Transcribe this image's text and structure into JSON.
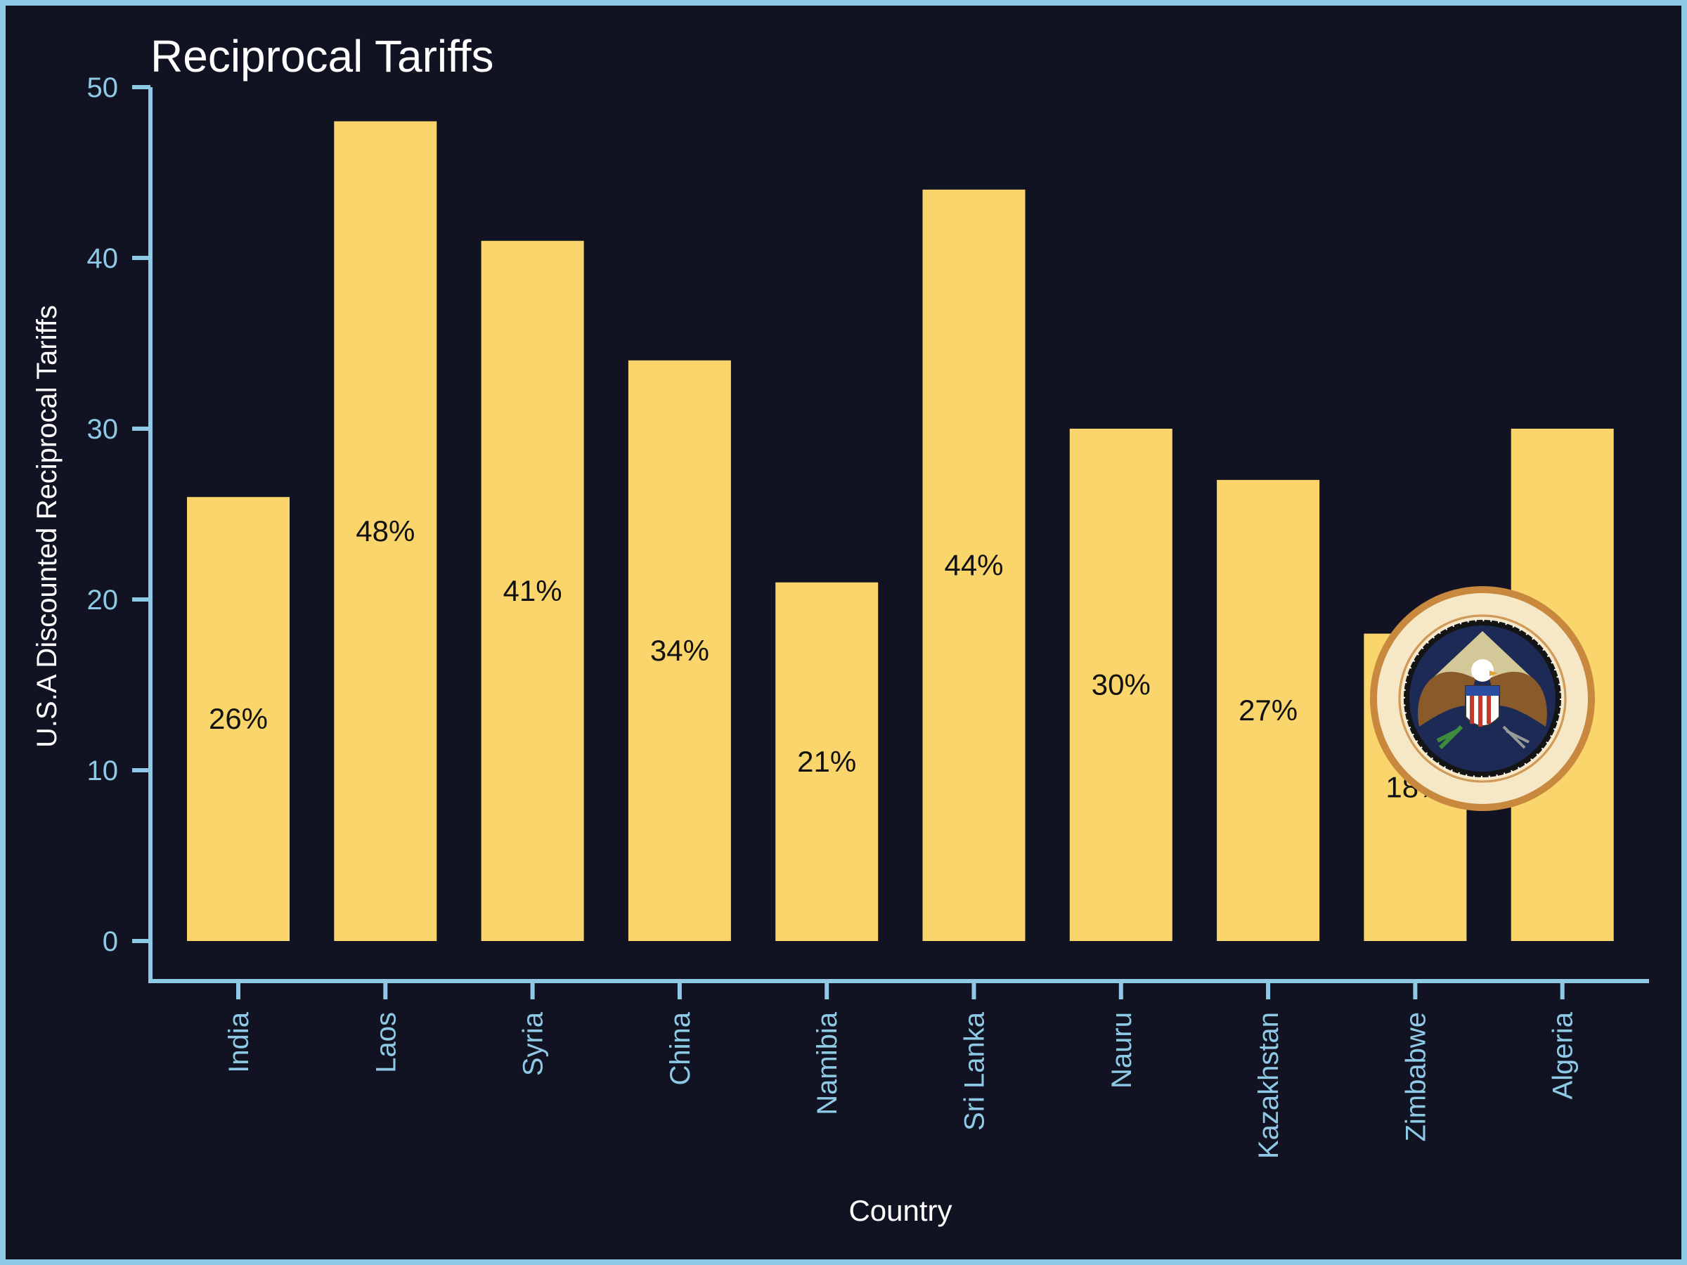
{
  "colors": {
    "background": "#111322",
    "frame": "#8ecae6",
    "axis": "#8ecae6",
    "tick_label": "#8ecae6",
    "text": "#ffffff",
    "bar": "#f9d56b",
    "bar_label": "#111111"
  },
  "chart_data": {
    "type": "bar",
    "title": "Reciprocal Tariffs",
    "xlabel": "Country",
    "ylabel": "U.S.A Discounted Reciprocal Tariffs",
    "categories": [
      "India",
      "Laos",
      "Syria",
      "China",
      "Namibia",
      "Sri Lanka",
      "Nauru",
      "Kazakhstan",
      "Zimbabwe",
      "Algeria"
    ],
    "values": [
      26,
      48,
      41,
      34,
      21,
      44,
      30,
      27,
      18,
      30
    ],
    "data_labels": [
      "26%",
      "48%",
      "41%",
      "34%",
      "21%",
      "44%",
      "30%",
      "27%",
      "18%",
      "30%"
    ],
    "ylim": [
      0,
      50
    ],
    "yticks": [
      0,
      10,
      20,
      30,
      40,
      50
    ],
    "grid": false,
    "legend": "none"
  },
  "overlay": {
    "seal_icon": "presidential-seal-icon",
    "seal_text": "SEAL OF THE PRESIDENT OF THE UNITED STATES"
  }
}
